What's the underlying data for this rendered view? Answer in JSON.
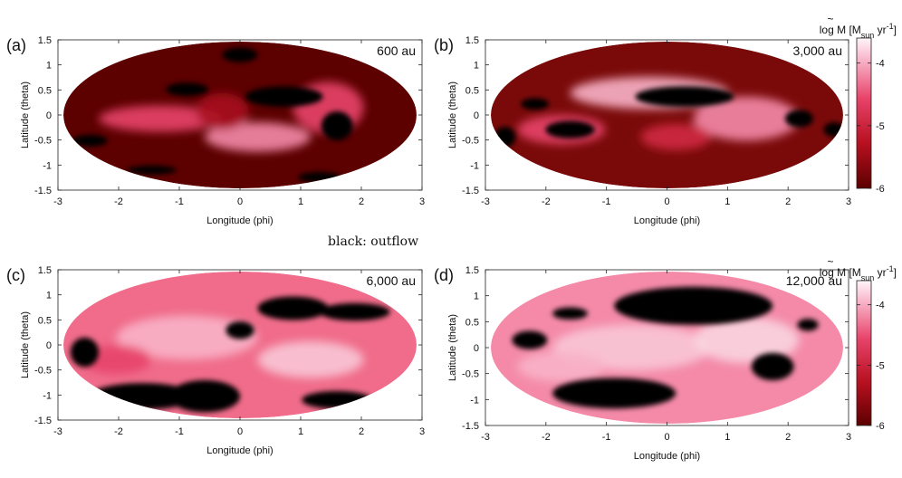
{
  "figure_note": "black: outflow",
  "colors": {
    "low": "#5c0000",
    "mid": "#e8446a",
    "high": "#fff5fa",
    "outflow": "#000000"
  },
  "colorbar": {
    "label_main": "log ",
    "label_symbol": "M",
    "label_bracket": " [M",
    "label_sub": "sun",
    "label_unit": " yr",
    "label_sup": "-1",
    "label_close": "]",
    "ticks": [
      {
        "label": "-4",
        "value": -4
      },
      {
        "label": "-5",
        "value": -5
      },
      {
        "label": "-6",
        "value": -6
      }
    ],
    "range": [
      -6,
      -3.6
    ]
  },
  "chart_data": [
    {
      "type": "heatmap",
      "panel_label": "(a)",
      "annotation": "600 au",
      "xlabel": "Longitude (phi)",
      "ylabel": "Latitude (theta)",
      "xlim": [
        -3,
        3
      ],
      "ylim": [
        -1.5,
        1.5
      ],
      "xticks": [
        "-3",
        "-2",
        "-1",
        "0",
        "1",
        "2",
        "3"
      ],
      "yticks": [
        "1.5",
        "1",
        "0.5",
        "0",
        "-0.5",
        "-1",
        "-1.5"
      ],
      "colorbar": false,
      "projection": "mollweide"
    },
    {
      "type": "heatmap",
      "panel_label": "(b)",
      "annotation": "3,000 au",
      "xlabel": "Longitude (phi)",
      "ylabel": "Latitude (theta)",
      "xlim": [
        -3,
        3
      ],
      "ylim": [
        -1.5,
        1.5
      ],
      "xticks": [
        "-3",
        "-2",
        "-1",
        "0",
        "1",
        "2",
        "3"
      ],
      "yticks": [
        "1.5",
        "1",
        "0.5",
        "0",
        "-0.5",
        "-1",
        "-1.5"
      ],
      "colorbar": true,
      "projection": "mollweide"
    },
    {
      "type": "heatmap",
      "panel_label": "(c)",
      "annotation": "6,000 au",
      "xlabel": "Longitude (phi)",
      "ylabel": "Latitude (theta)",
      "xlim": [
        -3,
        3
      ],
      "ylim": [
        -1.5,
        1.5
      ],
      "xticks": [
        "-3",
        "-2",
        "-1",
        "0",
        "1",
        "2",
        "3"
      ],
      "yticks": [
        "1.5",
        "1",
        "0.5",
        "0",
        "-0.5",
        "-1",
        "-1.5"
      ],
      "colorbar": false,
      "projection": "mollweide"
    },
    {
      "type": "heatmap",
      "panel_label": "(d)",
      "annotation": "12,000 au",
      "xlabel": "Longitude (phi)",
      "ylabel": "Latitude (theta)",
      "xlim": [
        -3,
        3
      ],
      "ylim": [
        -1.5,
        1.5
      ],
      "xticks": [
        "-3",
        "-2",
        "-1",
        "0",
        "1",
        "2",
        "3"
      ],
      "yticks": [
        "1.5",
        "1",
        "0.5",
        "0",
        "-0.5",
        "-1",
        "-1.5"
      ],
      "colorbar": true,
      "projection": "mollweide"
    }
  ]
}
